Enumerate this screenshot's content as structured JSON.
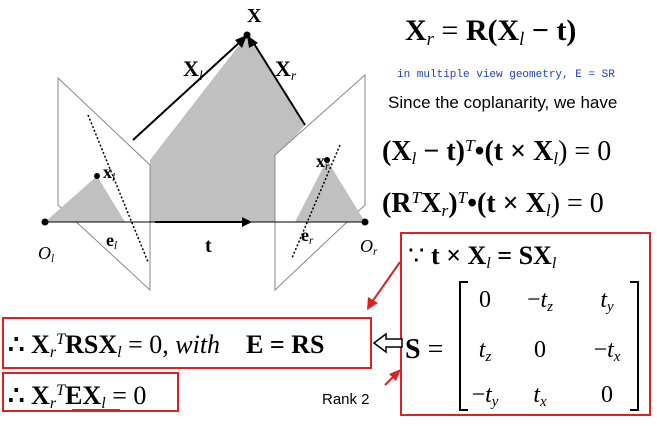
{
  "figure": {
    "X": [
      {
        "text": "X",
        "style": "bold"
      }
    ],
    "X_l": [
      {
        "text": "X",
        "style": "bold"
      },
      {
        "text": "l",
        "style": "sub"
      }
    ],
    "X_r": [
      {
        "text": "X",
        "style": "bold"
      },
      {
        "text": "r",
        "style": "sub"
      }
    ],
    "x_l": [
      {
        "text": "x",
        "style": "bold"
      },
      {
        "text": "l",
        "style": "sub"
      }
    ],
    "x_r": [
      {
        "text": "x",
        "style": "bold"
      },
      {
        "text": "r",
        "style": "sub"
      }
    ],
    "e_l": [
      {
        "text": "e",
        "style": "bold"
      },
      {
        "text": "l",
        "style": "sub"
      }
    ],
    "e_r": [
      {
        "text": "e",
        "style": "bold"
      },
      {
        "text": "r",
        "style": "sub"
      }
    ],
    "O_l": [
      {
        "text": "O",
        "style": "italic"
      },
      {
        "text": "l",
        "style": "sub"
      }
    ],
    "O_r": [
      {
        "text": "O",
        "style": "italic"
      },
      {
        "text": "r",
        "style": "sub"
      }
    ],
    "t": [
      {
        "text": "t",
        "style": "bold"
      }
    ]
  },
  "text": {
    "equation_1": [
      {
        "text": "X",
        "style": "bold"
      },
      {
        "text": "r",
        "style": "sub"
      },
      {
        "text": " = ",
        "style": "normal"
      },
      {
        "text": "R(X",
        "style": "bold"
      },
      {
        "text": "l",
        "style": "sub"
      },
      {
        "text": " − t)",
        "style": "bold"
      }
    ],
    "note": [
      {
        "text": "in multiple view geometry, E = SR",
        "style": "normal"
      }
    ],
    "coplanarity": [
      {
        "text": "Since the coplanarity, we have",
        "style": "normal"
      }
    ],
    "equation_2": [
      {
        "text": "(X",
        "style": "bold"
      },
      {
        "text": "l",
        "style": "sub"
      },
      {
        "text": " − t)",
        "style": "bold"
      },
      {
        "text": "T",
        "style": "sup"
      },
      {
        "text": "•(t × X",
        "style": "bold"
      },
      {
        "text": "l",
        "style": "sub"
      },
      {
        "text": ") = 0",
        "style": "normal"
      }
    ],
    "equation_3": [
      {
        "text": "(R",
        "style": "bold"
      },
      {
        "text": "T",
        "style": "sup"
      },
      {
        "text": "X",
        "style": "bold"
      },
      {
        "text": "r",
        "style": "sub"
      },
      {
        "text": ")",
        "style": "bold"
      },
      {
        "text": "T",
        "style": "sup"
      },
      {
        "text": "•(t × X",
        "style": "bold"
      },
      {
        "text": "l",
        "style": "sub"
      },
      {
        "text": ") = 0",
        "style": "normal"
      }
    ],
    "because": [
      {
        "text": "∵ ",
        "style": "normal"
      },
      {
        "text": "t × X",
        "style": "bold"
      },
      {
        "text": "l",
        "style": "sub"
      },
      {
        "text": " = SX",
        "style": "bold"
      },
      {
        "text": "l",
        "style": "sub"
      }
    ],
    "matrix_lhs": [
      {
        "text": "S",
        "style": "bold"
      },
      {
        "text": " =",
        "style": "normal"
      }
    ],
    "result_1": [
      {
        "text": "∴ X",
        "style": "bold"
      },
      {
        "text": "r",
        "style": "sub"
      },
      {
        "text": "T",
        "style": "sup"
      },
      {
        "text": "RSX",
        "style": "bold"
      },
      {
        "text": "l",
        "style": "sub"
      },
      {
        "text": " = 0, ",
        "style": "normal"
      },
      {
        "text": "with",
        "style": "italic"
      },
      {
        "text": "    E = RS",
        "style": "bold"
      }
    ],
    "result_2": [
      {
        "text": "∴ X",
        "style": "bold"
      },
      {
        "text": "r",
        "style": "sub"
      },
      {
        "text": "T",
        "style": "sup"
      },
      {
        "text": "EX",
        "style": "bold"
      },
      {
        "text": "l",
        "style": "sub"
      },
      {
        "text": " = 0",
        "style": "normal"
      }
    ],
    "rank": [
      {
        "text": "Rank 2",
        "style": "normal"
      }
    ]
  },
  "matrix": [
    [
      [
        {
          "text": "0",
          "style": "normal"
        }
      ],
      [
        {
          "text": "−",
          "style": "normal"
        },
        {
          "text": "t",
          "style": "italic"
        },
        {
          "text": "z",
          "style": "sub"
        }
      ],
      [
        {
          "text": "t",
          "style": "italic"
        },
        {
          "text": "y",
          "style": "sub"
        }
      ]
    ],
    [
      [
        {
          "text": "t",
          "style": "italic"
        },
        {
          "text": "z",
          "style": "sub"
        }
      ],
      [
        {
          "text": "0",
          "style": "normal"
        }
      ],
      [
        {
          "text": "−",
          "style": "normal"
        },
        {
          "text": "t",
          "style": "italic"
        },
        {
          "text": "x",
          "style": "sub"
        }
      ]
    ],
    [
      [
        {
          "text": "−",
          "style": "normal"
        },
        {
          "text": "t",
          "style": "italic"
        },
        {
          "text": "y",
          "style": "sub"
        }
      ],
      [
        {
          "text": "t",
          "style": "italic"
        },
        {
          "text": "x",
          "style": "sub"
        }
      ],
      [
        {
          "text": "0",
          "style": "normal"
        }
      ]
    ]
  ]
}
